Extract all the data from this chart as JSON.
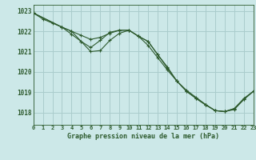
{
  "title": "Graphe pression niveau de la mer (hPa)",
  "bg_color": "#cce8e8",
  "grid_color": "#aacccc",
  "line_color": "#2d5a2d",
  "xlim": [
    0,
    23
  ],
  "ylim": [
    1017.4,
    1023.3
  ],
  "yticks": [
    1018,
    1019,
    1020,
    1021,
    1022,
    1023
  ],
  "xticks": [
    0,
    1,
    2,
    3,
    4,
    5,
    6,
    7,
    8,
    9,
    10,
    11,
    12,
    13,
    14,
    15,
    16,
    17,
    18,
    19,
    20,
    21,
    22,
    23
  ],
  "series": [
    {
      "x": [
        0,
        1,
        2,
        3,
        4,
        5,
        6,
        7,
        8,
        9,
        10,
        11,
        12,
        13,
        14,
        15,
        16,
        17,
        18,
        19,
        20,
        21,
        22,
        23
      ],
      "y": [
        1022.9,
        1022.6,
        1022.4,
        1022.2,
        1022.0,
        1021.8,
        1021.6,
        1021.7,
        1021.9,
        1022.05,
        1022.05,
        1021.75,
        1021.3,
        1020.7,
        1020.1,
        1019.55,
        1019.1,
        1018.75,
        1018.4,
        1018.1,
        1018.05,
        1018.2,
        1018.65,
        1019.05
      ]
    },
    {
      "x": [
        0,
        3,
        4,
        5,
        6,
        7,
        8,
        9,
        10,
        11,
        12,
        13,
        14,
        15,
        16,
        17,
        18,
        19,
        20,
        21,
        22,
        23
      ],
      "y": [
        1022.9,
        1022.2,
        1021.85,
        1021.5,
        1021.2,
        1021.55,
        1021.95,
        1022.05,
        1022.05,
        1021.75,
        1021.5,
        1020.85,
        1020.2,
        1019.55,
        1019.05,
        1018.7,
        1018.38,
        1018.1,
        1018.05,
        1018.15,
        1018.65,
        1019.05
      ]
    },
    {
      "x": [
        0,
        3,
        4,
        5,
        6,
        7,
        8,
        9,
        10,
        11,
        12,
        13,
        14,
        15,
        16,
        17,
        18,
        19,
        20,
        21,
        22,
        23
      ],
      "y": [
        1022.9,
        1022.2,
        1022.0,
        1021.5,
        1021.0,
        1021.05,
        1021.55,
        1021.9,
        1022.05,
        1021.75,
        1021.5,
        1020.85,
        1020.25,
        1019.55,
        1019.05,
        1018.7,
        1018.38,
        1018.1,
        1018.05,
        1018.2,
        1018.7,
        1019.05
      ]
    }
  ]
}
